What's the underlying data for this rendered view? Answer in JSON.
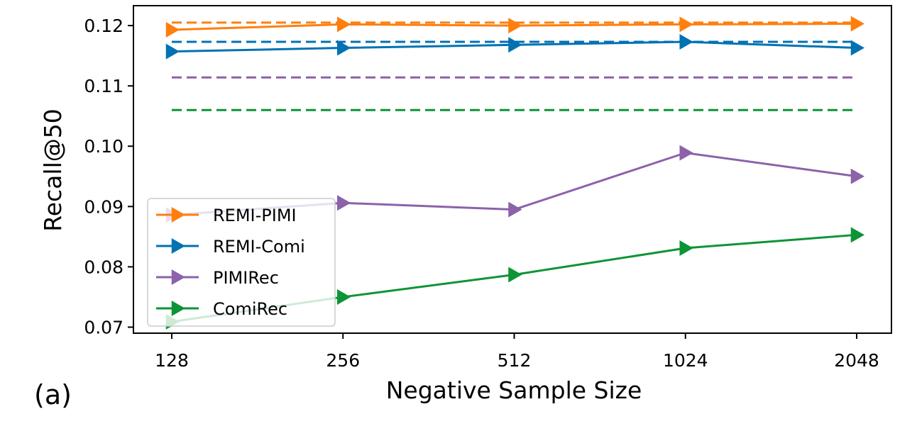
{
  "panel_label": "(a)",
  "chart_data": {
    "type": "line",
    "title": "",
    "xlabel": "Negative Sample Size",
    "ylabel": "Recall@50",
    "x_categories": [
      "128",
      "256",
      "512",
      "1024",
      "2048"
    ],
    "ylim": [
      0.069,
      0.1233
    ],
    "yticks": [
      0.07,
      0.08,
      0.09,
      0.1,
      0.11,
      0.12
    ],
    "ytick_labels": [
      "0.07",
      "0.08",
      "0.09",
      "0.10",
      "0.11",
      "0.12"
    ],
    "grid": false,
    "legend_position": "lower-left",
    "series": [
      {
        "name": "REMI-PIMI",
        "color": "#ff7f0e",
        "marker": "triangle-right",
        "values": [
          0.1193,
          0.1202,
          0.12,
          0.1202,
          0.1203
        ],
        "baseline": 0.1205
      },
      {
        "name": "REMI-Comi",
        "color": "#0072b2",
        "marker": "triangle-right",
        "values": [
          0.1157,
          0.1163,
          0.1168,
          0.1173,
          0.1163
        ],
        "baseline": 0.1173
      },
      {
        "name": "PIMIRec",
        "color": "#8c62aa",
        "marker": "triangle-right",
        "values": [
          0.0886,
          0.0906,
          0.0895,
          0.0989,
          0.095
        ],
        "baseline": 0.1114
      },
      {
        "name": "ComiRec",
        "color": "#0d9436",
        "marker": "triangle-right",
        "values": [
          0.0709,
          0.075,
          0.0787,
          0.0831,
          0.0853
        ],
        "baseline": 0.106
      }
    ]
  }
}
